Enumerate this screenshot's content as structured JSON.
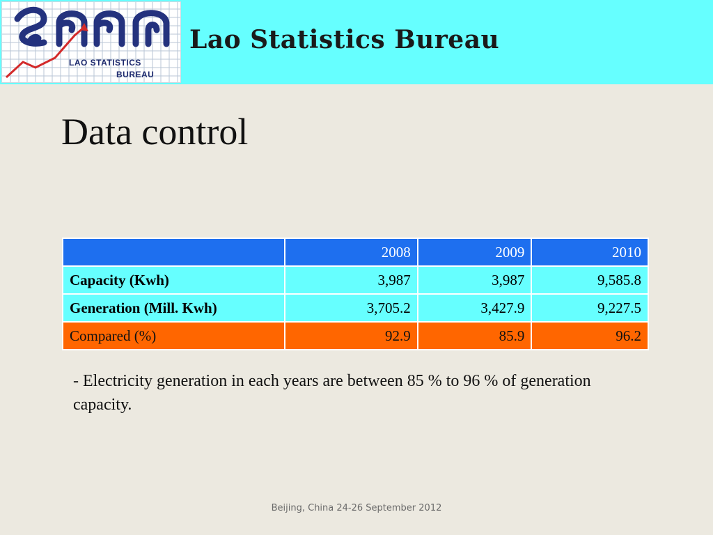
{
  "header": {
    "logo_line1": "LAO STATISTICS",
    "logo_line2": "BUREAU",
    "title": "Lao Statistics Bureau"
  },
  "page_title": "Data control",
  "table": {
    "columns": [
      "",
      "2008",
      "2009",
      "2010"
    ],
    "rows": [
      {
        "label": "Capacity (Kwh)",
        "values": [
          "3,987",
          "3,987",
          "9,585.8"
        ]
      },
      {
        "label": "Generation (Mill. Kwh)",
        "values": [
          "3,705.2",
          "3,427.9",
          "9,227.5"
        ]
      },
      {
        "label": "Compared (%)",
        "values": [
          "92.9",
          "85.9",
          "96.2"
        ]
      }
    ]
  },
  "note": "- Electricity generation in each years are between 85 % to 96 % of generation capacity.",
  "footer": "Beijing, China 24-26 September 2012",
  "colors": {
    "header_bg": "#66FFFF",
    "table_header": "#1E6FEF",
    "row_highlight": "#66FFFF",
    "row_compared": "#FF6600",
    "background": "#ECE9E0"
  }
}
